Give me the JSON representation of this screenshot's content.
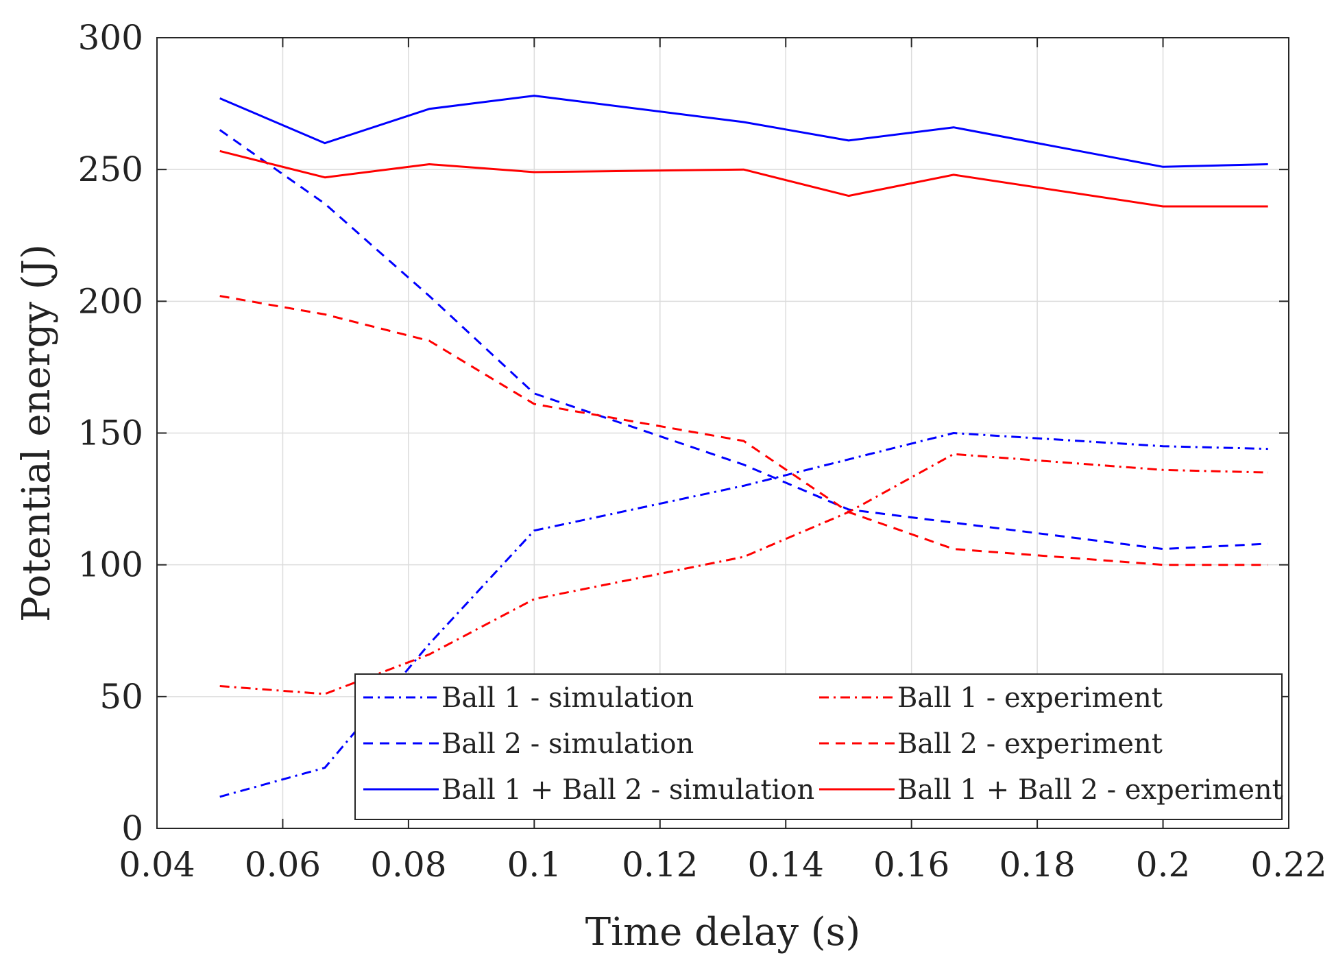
{
  "chart_data": {
    "type": "line",
    "xlabel": "Time delay (s)",
    "ylabel": "Potential energy (J)",
    "xlim": [
      0.04,
      0.22
    ],
    "ylim": [
      0,
      300
    ],
    "xticks": [
      0.04,
      0.06,
      0.08,
      0.1,
      0.12,
      0.14,
      0.16,
      0.18,
      0.2,
      0.22
    ],
    "xtick_labels": [
      "0.04",
      "0.06",
      "0.08",
      "0.1",
      "0.12",
      "0.14",
      "0.16",
      "0.18",
      "0.2",
      "0.22"
    ],
    "yticks": [
      0,
      50,
      100,
      150,
      200,
      250,
      300
    ],
    "ytick_labels": [
      "0",
      "50",
      "100",
      "150",
      "200",
      "250",
      "300"
    ],
    "grid": true,
    "legend_position": "bottom-center",
    "x": [
      0.05,
      0.0667,
      0.0833,
      0.1,
      0.1333,
      0.15,
      0.1667,
      0.2,
      0.2167
    ],
    "series": [
      {
        "name": "Ball 1 - simulation",
        "color": "#0000ff",
        "style": "dashdot",
        "values": [
          12,
          23,
          70,
          113,
          130,
          140,
          150,
          145,
          144
        ]
      },
      {
        "name": "Ball 2 - simulation",
        "color": "#0000ff",
        "style": "dashed",
        "values": [
          265,
          237,
          202,
          165,
          138,
          121,
          116,
          106,
          108
        ]
      },
      {
        "name": "Ball 1 + Ball 2 - simulation",
        "color": "#0000ff",
        "style": "solid",
        "values": [
          277,
          260,
          273,
          278,
          268,
          261,
          266,
          251,
          252
        ]
      },
      {
        "name": "Ball 1 - experiment",
        "color": "#ff0000",
        "style": "dashdot",
        "values": [
          54,
          51,
          66,
          87,
          103,
          120,
          142,
          136,
          135
        ]
      },
      {
        "name": "Ball 2 - experiment",
        "color": "#ff0000",
        "style": "dashed",
        "values": [
          202,
          195,
          185,
          161,
          147,
          120,
          106,
          100,
          100
        ]
      },
      {
        "name": "Ball 1 + Ball 2 - experiment",
        "color": "#ff0000",
        "style": "solid",
        "values": [
          257,
          247,
          252,
          249,
          250,
          240,
          248,
          236,
          236
        ]
      }
    ]
  }
}
